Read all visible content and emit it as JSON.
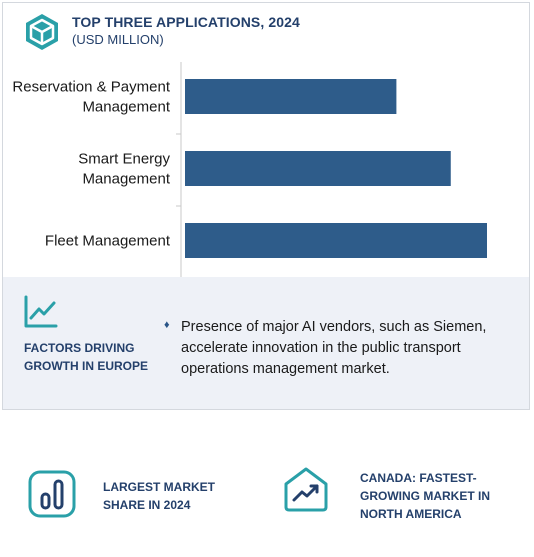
{
  "header": {
    "title": "TOP THREE APPLICATIONS, 2024",
    "subtitle": "(USD MILLION)",
    "icon": "hexagon-cube-icon"
  },
  "chart_data": {
    "type": "bar",
    "orientation": "horizontal",
    "categories": [
      [
        "Reservation & Payment",
        "Management"
      ],
      [
        "Smart Energy",
        "Management"
      ],
      [
        "Fleet Management"
      ]
    ],
    "values": [
      70,
      88,
      100
    ],
    "xlim": [
      0,
      100
    ],
    "grid": false,
    "bar_color": "#2e5c8a"
  },
  "factors": {
    "title": "FACTORS DRIVING GROWTH IN EUROPE",
    "bullet": "♦",
    "text": "Presence of major AI vendors, such as Siemen, accelerate innovation in the public transport operations management market.",
    "icon": "trend-line-icon"
  },
  "stats": [
    {
      "label": "LARGEST MARKET SHARE IN 2024",
      "icon": "bar-chart-icon"
    },
    {
      "label": "CANADA: FASTEST-GROWING MARKET IN NORTH AMERICA",
      "icon": "house-trend-icon"
    }
  ],
  "colors": {
    "accent": "#2aa0a8",
    "navy": "#24406b",
    "bar": "#2e5c8a",
    "panel_bg": "#eef1f7"
  }
}
